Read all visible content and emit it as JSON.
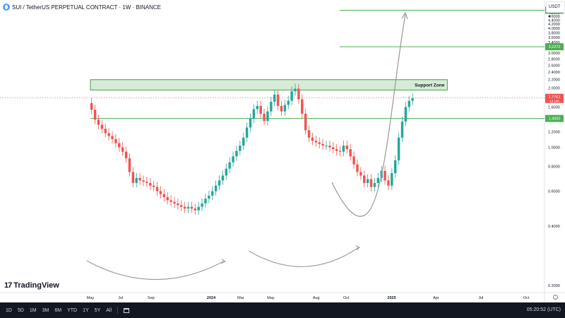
{
  "header": {
    "symbol_title": "SUI / TetherUS PERPETUAL CONTRACT · 1W · BINANCE",
    "currency": "USDT",
    "logo_icon": "sui-logo-icon",
    "currency_icon": "chevron-down-icon"
  },
  "brand": {
    "name": "TradingView",
    "mark": "17"
  },
  "toolbar": {
    "timeframes": [
      "1D",
      "5D",
      "1M",
      "3M",
      "6M",
      "YTD",
      "1Y",
      "5Y",
      "All"
    ],
    "calendar_icon": "calendar-icon",
    "clock": "05:20:52 (UTC)"
  },
  "colors": {
    "up": "#26a69a",
    "down": "#ef5350",
    "level_line": "#4caf50",
    "zone_fill": "#c8e6c9",
    "zone_border": "#43a047",
    "arc": "#9e9e9e",
    "current_price": "#ef5350"
  },
  "chart_data": {
    "type": "candlestick",
    "scale": "log",
    "ylim": [
      0.2,
      5.0
    ],
    "y_ticks": [
      "5.0000",
      "4.8000",
      "4.6000",
      "4.4000",
      "4.2000",
      "4.0000",
      "3.8000",
      "3.6000",
      "3.4000",
      "3.2000",
      "3.0000",
      "2.8000",
      "2.6000",
      "2.4000",
      "2.2000",
      "2.0000",
      "1.8000",
      "1.6000",
      "1.4000",
      "1.2000",
      "1.0000",
      "0.8000",
      "0.6000",
      "0.4000",
      "0.2000"
    ],
    "x_ticks": [
      {
        "label": "May",
        "date": "2023-05-01"
      },
      {
        "label": "Jul",
        "date": "2023-07-01"
      },
      {
        "label": "Sep",
        "date": "2023-09-01"
      },
      {
        "label": "2024",
        "date": "2024-01-01"
      },
      {
        "label": "Mar",
        "date": "2024-03-01"
      },
      {
        "label": "May",
        "date": "2024-05-01"
      },
      {
        "label": "Aug",
        "date": "2024-08-01"
      },
      {
        "label": "Oct",
        "date": "2024-10-01"
      },
      {
        "label": "2025",
        "date": "2025-01-01"
      },
      {
        "label": "Apr",
        "date": "2025-04-01"
      },
      {
        "label": "Jul",
        "date": "2025-07-01"
      },
      {
        "label": "Oct",
        "date": "2025-10-01"
      }
    ],
    "x_range": [
      "2023-05-01",
      "2025-11-20"
    ],
    "closes": [
      1.55,
      1.38,
      1.3,
      1.24,
      1.18,
      1.14,
      1.1,
      1.05,
      1.0,
      0.95,
      0.88,
      0.75,
      0.66,
      0.7,
      0.68,
      0.67,
      0.66,
      0.64,
      0.63,
      0.6,
      0.58,
      0.56,
      0.54,
      0.53,
      0.52,
      0.51,
      0.5,
      0.49,
      0.5,
      0.49,
      0.48,
      0.5,
      0.52,
      0.55,
      0.57,
      0.6,
      0.64,
      0.68,
      0.72,
      0.78,
      0.84,
      0.9,
      0.96,
      1.02,
      1.12,
      1.26,
      1.4,
      1.56,
      1.62,
      1.48,
      1.36,
      1.52,
      1.7,
      1.85,
      1.62,
      1.52,
      1.64,
      1.72,
      1.92,
      1.98,
      1.75,
      1.48,
      1.22,
      1.12,
      1.08,
      1.06,
      1.04,
      1.02,
      1.02,
      1.0,
      0.98,
      0.96,
      0.95,
      1.02,
      0.98,
      0.9,
      0.82,
      0.75,
      0.72,
      0.66,
      0.69,
      0.63,
      0.66,
      0.7,
      0.76,
      0.68,
      0.64,
      0.74,
      0.86,
      1.12,
      1.35,
      1.6,
      1.72,
      1.77
    ],
    "annotations": {
      "support_zone": {
        "label": "Support Zone",
        "y_low": 1.95,
        "y_high": 2.2,
        "x_start": "2023-05-01",
        "x_end": "2025-04-01"
      },
      "levels": [
        {
          "value": 1.4,
          "label": "1.4000",
          "x_start": "2023-05-01"
        },
        {
          "value": 3.2272,
          "label": "3.2272",
          "x_start": "2024-10-01"
        },
        {
          "value": 4.94,
          "label": "",
          "x_start": "2024-10-01"
        }
      ],
      "current_price": {
        "value": 1.7761,
        "label": "1.7761",
        "countdown": "1d 19h"
      }
    }
  }
}
